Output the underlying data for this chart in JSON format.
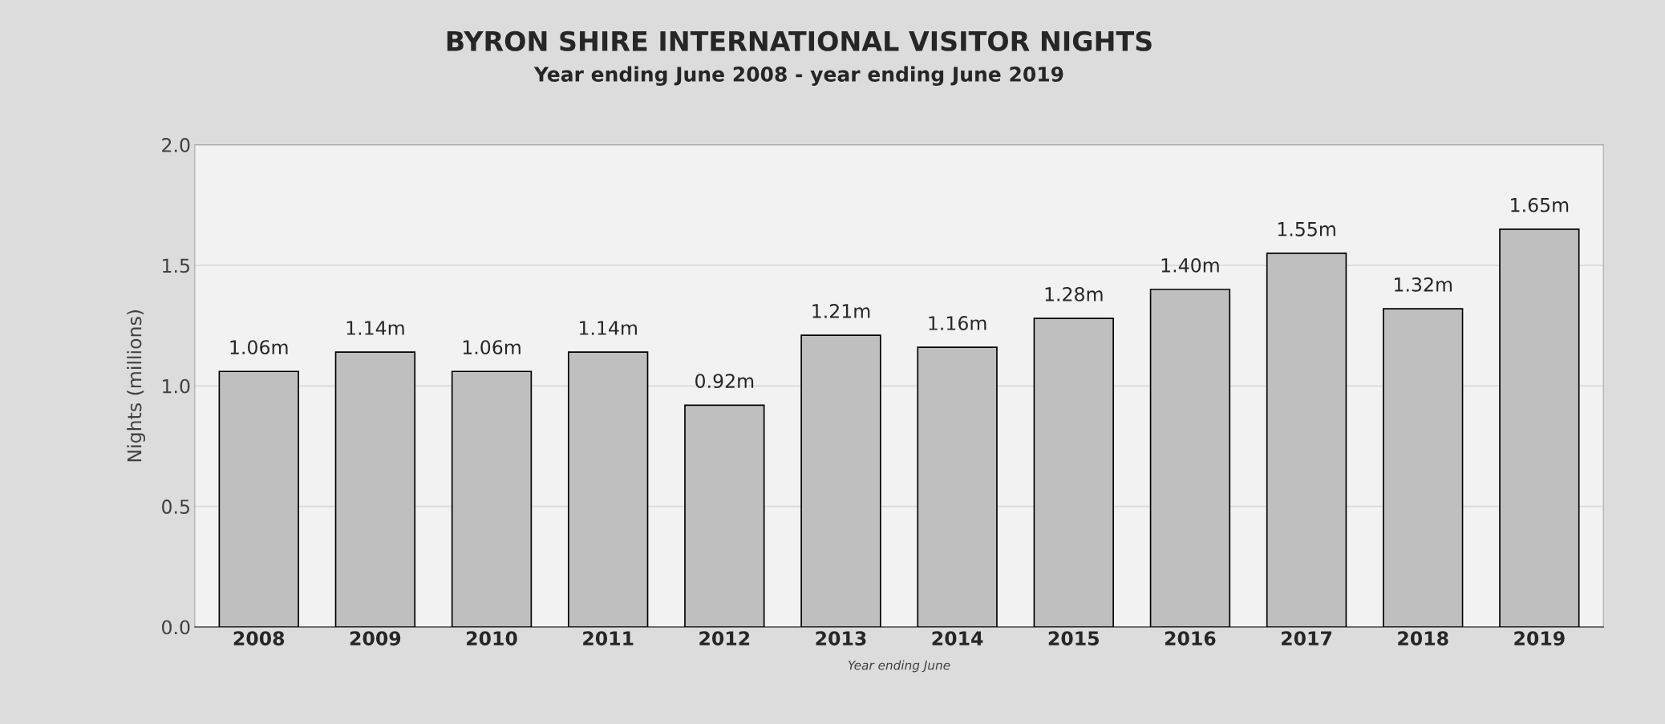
{
  "chart_data": {
    "type": "bar",
    "title": "BYRON SHIRE INTERNATIONAL VISITOR NIGHTS",
    "subtitle": "Year ending June 2008 - year ending June 2019",
    "xlabel": "Year ending June",
    "ylabel": "Nights (millions)",
    "categories": [
      "2008",
      "2009",
      "2010",
      "2011",
      "2012",
      "2013",
      "2014",
      "2015",
      "2016",
      "2017",
      "2018",
      "2019"
    ],
    "values": [
      1.06,
      1.14,
      1.06,
      1.14,
      0.92,
      1.21,
      1.16,
      1.28,
      1.4,
      1.55,
      1.32,
      1.65
    ],
    "value_labels": [
      "1.06m",
      "1.14m",
      "1.06m",
      "1.14m",
      "0.92m",
      "1.21m",
      "1.16m",
      "1.28m",
      "1.40m",
      "1.55m",
      "1.32m",
      "1.65m"
    ],
    "color": "#bfbfbf",
    "ylim": [
      0,
      2.0
    ],
    "yticks": [
      {
        "value": 0,
        "label": "0.0"
      },
      {
        "value": 0.5,
        "label": "0.5"
      },
      {
        "value": 1.0,
        "label": "1.0"
      },
      {
        "value": 1.5,
        "label": "1.5"
      },
      {
        "value": 2.0,
        "label": "2.0"
      }
    ],
    "grid": "y"
  }
}
